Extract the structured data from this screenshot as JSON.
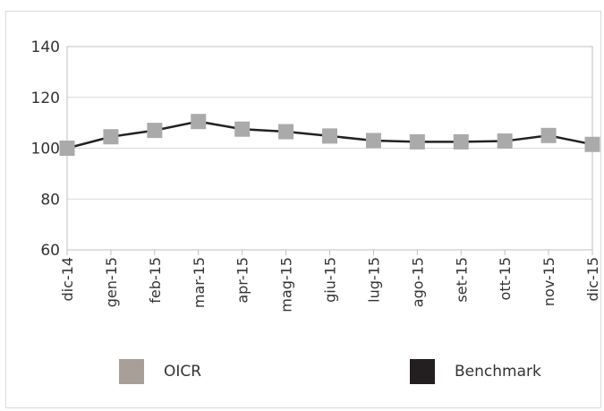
{
  "chart_data": {
    "type": "line",
    "categories": [
      "dic-14",
      "gen-15",
      "feb-15",
      "mar-15",
      "apr-15",
      "mag-15",
      "giu-15",
      "lug-15",
      "ago-15",
      "set-15",
      "ott-15",
      "nov-15",
      "dic-15"
    ],
    "series": [
      {
        "name": "OICR",
        "values": [
          100,
          104.5,
          107,
          110.5,
          107.5,
          106.5,
          104.8,
          103,
          102.5,
          102.5,
          102.8,
          105,
          101.5
        ],
        "color": "#aaaaaa",
        "marker": "square"
      },
      {
        "name": "Benchmark",
        "values": [
          100,
          104.5,
          107,
          110.5,
          107.5,
          106.5,
          104.8,
          103,
          102.5,
          102.5,
          102.8,
          105,
          101.5
        ],
        "color": "#222222",
        "marker": "line"
      }
    ],
    "ylim": [
      60,
      140
    ],
    "yticks": [
      60,
      80,
      100,
      120,
      140
    ],
    "grid": true,
    "legend_position": "bottom",
    "legend_swatch_colors": {
      "OICR": "#a79f98",
      "Benchmark": "#231f20"
    }
  }
}
